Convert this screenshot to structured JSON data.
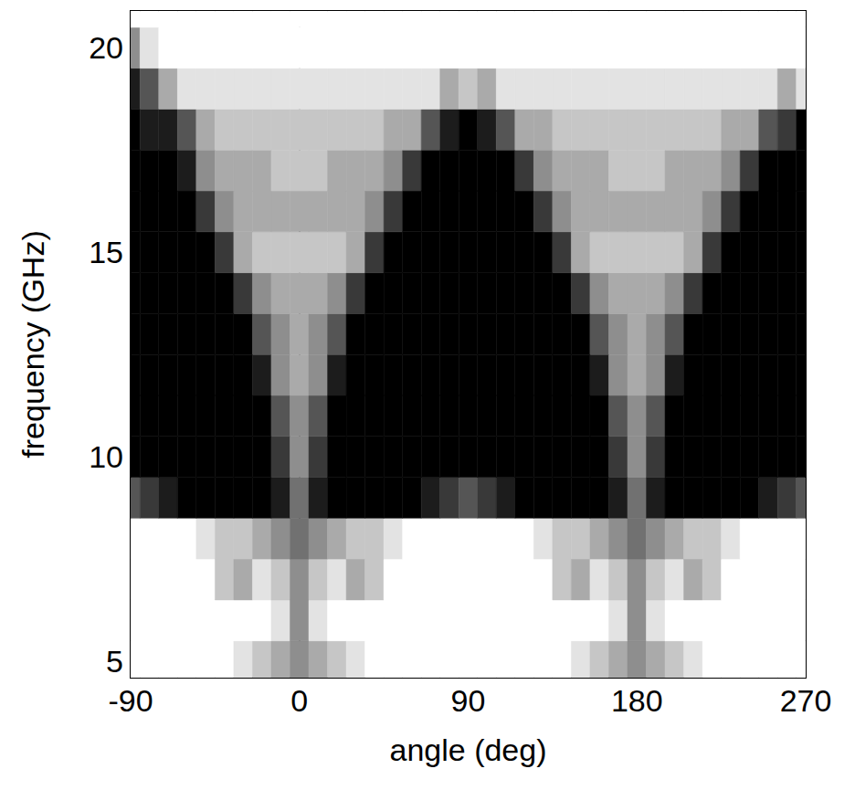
{
  "chart_data": {
    "type": "heatmap",
    "x_label": "angle (deg)",
    "y_label": "frequency (GHz)",
    "xlim": [
      -90,
      270
    ],
    "xticks": [
      -90,
      0,
      90,
      180,
      270
    ],
    "ylim": [
      4.6,
      20.9
    ],
    "yticks": [
      5,
      10,
      15,
      20
    ],
    "grid": false,
    "x": [
      -90,
      -80,
      -70,
      -60,
      -50,
      -40,
      -30,
      -20,
      -10,
      0,
      10,
      20,
      30,
      40,
      50,
      60,
      70,
      80,
      90,
      100,
      110,
      120,
      130,
      140,
      150,
      160,
      170,
      180,
      190,
      200,
      210,
      220,
      230,
      240,
      250,
      260,
      270
    ],
    "y": [
      5,
      6,
      7,
      8,
      9,
      10,
      11,
      12,
      13,
      14,
      15,
      16,
      17,
      18,
      19,
      20,
      21
    ],
    "color_range": [
      0,
      9
    ],
    "values": [
      [
        9,
        9,
        9,
        9,
        9,
        9,
        8,
        7,
        6,
        5,
        6,
        7,
        8,
        9,
        9,
        9,
        9,
        9,
        9,
        9,
        9,
        9,
        9,
        9,
        8,
        7,
        6,
        5,
        6,
        7,
        8,
        9,
        9,
        9,
        9,
        9,
        9
      ],
      [
        9,
        9,
        9,
        9,
        9,
        9,
        9,
        9,
        8,
        5,
        8,
        9,
        9,
        9,
        9,
        9,
        9,
        9,
        9,
        9,
        9,
        9,
        9,
        9,
        9,
        9,
        8,
        5,
        8,
        9,
        9,
        9,
        9,
        9,
        9,
        9,
        9
      ],
      [
        9,
        9,
        9,
        9,
        9,
        7,
        6,
        8,
        7,
        5,
        7,
        8,
        6,
        7,
        9,
        9,
        9,
        9,
        9,
        9,
        9,
        9,
        9,
        7,
        6,
        8,
        7,
        5,
        7,
        8,
        6,
        7,
        9,
        9,
        9,
        9,
        9
      ],
      [
        9,
        9,
        9,
        9,
        8,
        7,
        7,
        6,
        5,
        4,
        5,
        6,
        7,
        7,
        8,
        9,
        9,
        9,
        9,
        9,
        9,
        9,
        8,
        7,
        7,
        6,
        5,
        4,
        5,
        6,
        7,
        7,
        8,
        9,
        9,
        9,
        9
      ],
      [
        3,
        2,
        1,
        0,
        0,
        0,
        0,
        0,
        1,
        4,
        1,
        0,
        0,
        0,
        0,
        0,
        1,
        2,
        3,
        2,
        1,
        0,
        0,
        0,
        0,
        0,
        1,
        4,
        1,
        0,
        0,
        0,
        0,
        0,
        1,
        2,
        3
      ],
      [
        0,
        0,
        0,
        0,
        0,
        0,
        0,
        0,
        2,
        5,
        2,
        0,
        0,
        0,
        0,
        0,
        0,
        0,
        0,
        0,
        0,
        0,
        0,
        0,
        0,
        0,
        2,
        5,
        2,
        0,
        0,
        0,
        0,
        0,
        0,
        0,
        0
      ],
      [
        0,
        0,
        0,
        0,
        0,
        0,
        0,
        0,
        3,
        5,
        3,
        0,
        0,
        0,
        0,
        0,
        0,
        0,
        0,
        0,
        0,
        0,
        0,
        0,
        0,
        0,
        3,
        5,
        3,
        0,
        0,
        0,
        0,
        0,
        0,
        0,
        0
      ],
      [
        0,
        0,
        0,
        0,
        0,
        0,
        0,
        1,
        5,
        6,
        5,
        1,
        0,
        0,
        0,
        0,
        0,
        0,
        0,
        0,
        0,
        0,
        0,
        0,
        0,
        1,
        5,
        6,
        5,
        1,
        0,
        0,
        0,
        0,
        0,
        0,
        0
      ],
      [
        0,
        0,
        0,
        0,
        0,
        0,
        0,
        3,
        5,
        6,
        5,
        3,
        0,
        0,
        0,
        0,
        0,
        0,
        0,
        0,
        0,
        0,
        0,
        0,
        0,
        3,
        5,
        6,
        5,
        3,
        0,
        0,
        0,
        0,
        0,
        0,
        0
      ],
      [
        0,
        0,
        0,
        0,
        0,
        0,
        2,
        5,
        6,
        6,
        6,
        5,
        2,
        0,
        0,
        0,
        0,
        0,
        0,
        0,
        0,
        0,
        0,
        0,
        2,
        5,
        6,
        6,
        6,
        5,
        2,
        0,
        0,
        0,
        0,
        0,
        0
      ],
      [
        0,
        0,
        0,
        0,
        0,
        2,
        6,
        7,
        7,
        7,
        7,
        7,
        6,
        2,
        0,
        0,
        0,
        0,
        0,
        0,
        0,
        0,
        0,
        2,
        6,
        7,
        7,
        7,
        7,
        7,
        6,
        2,
        0,
        0,
        0,
        0,
        0
      ],
      [
        0,
        0,
        0,
        0,
        2,
        5,
        6,
        6,
        6,
        6,
        6,
        6,
        6,
        5,
        2,
        0,
        0,
        0,
        0,
        0,
        0,
        0,
        2,
        5,
        6,
        6,
        6,
        6,
        6,
        6,
        6,
        5,
        2,
        0,
        0,
        0,
        0
      ],
      [
        0,
        0,
        0,
        1,
        5,
        6,
        6,
        6,
        7,
        7,
        7,
        6,
        6,
        6,
        5,
        2,
        0,
        0,
        0,
        0,
        0,
        2,
        5,
        6,
        6,
        6,
        7,
        7,
        7,
        6,
        6,
        6,
        5,
        2,
        0,
        0,
        0
      ],
      [
        0,
        1,
        1,
        3,
        6,
        7,
        7,
        7,
        7,
        7,
        7,
        7,
        7,
        7,
        6,
        6,
        3,
        1,
        0,
        1,
        3,
        6,
        6,
        7,
        7,
        7,
        7,
        7,
        7,
        7,
        7,
        7,
        6,
        6,
        3,
        2,
        0
      ],
      [
        1,
        3,
        6,
        8,
        8,
        8,
        8,
        8,
        8,
        8,
        8,
        8,
        8,
        8,
        8,
        8,
        8,
        6,
        7,
        6,
        8,
        8,
        8,
        8,
        8,
        8,
        8,
        8,
        8,
        8,
        8,
        8,
        8,
        8,
        8,
        6,
        8
      ],
      [
        5,
        8,
        9,
        9,
        9,
        9,
        9,
        9,
        9,
        9,
        9,
        9,
        9,
        9,
        9,
        9,
        9,
        9,
        9,
        9,
        9,
        9,
        9,
        9,
        9,
        9,
        9,
        9,
        9,
        9,
        9,
        9,
        9,
        9,
        9,
        9,
        9
      ],
      [
        9,
        9,
        9,
        9,
        9,
        9,
        9,
        9,
        9,
        9,
        9,
        9,
        9,
        9,
        9,
        9,
        9,
        9,
        9,
        9,
        9,
        9,
        9,
        9,
        9,
        9,
        9,
        9,
        9,
        9,
        9,
        9,
        9,
        9,
        9,
        9,
        9
      ]
    ]
  }
}
